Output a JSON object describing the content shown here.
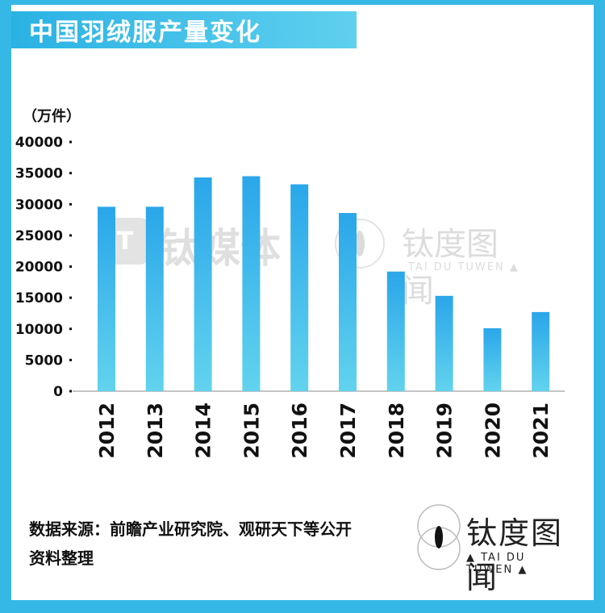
{
  "title": "中国羽绒服产量变化",
  "unit_label": "（万件）",
  "source": {
    "line1": "数据来源：前瞻产业研究院、观研天下等公开",
    "line2": "资料整理"
  },
  "logo": {
    "cn": "钛度图闻",
    "en": "▲ TAI DU TUWEN ▲"
  },
  "watermarks": {
    "left_icon": "T",
    "left_text": "钛媒体",
    "right_text": "钛度图闻",
    "right_en": "TAI DU TUWEN ▲"
  },
  "colors": {
    "frame": "#35b8e6",
    "bar_top": "#2aa6ea",
    "bar_bottom": "#62d3ee"
  },
  "chart_data": {
    "type": "bar",
    "categories": [
      "2012",
      "2013",
      "2014",
      "2015",
      "2016",
      "2017",
      "2018",
      "2019",
      "2020",
      "2021"
    ],
    "values": [
      29600,
      29600,
      34300,
      34500,
      33200,
      28600,
      19200,
      15300,
      10100,
      12700
    ],
    "ylabel": "（万件）",
    "ylim": [
      0,
      40000
    ],
    "yticks": [
      0,
      5000,
      10000,
      15000,
      20000,
      25000,
      30000,
      35000,
      40000
    ],
    "grid": false,
    "legend": "none"
  }
}
